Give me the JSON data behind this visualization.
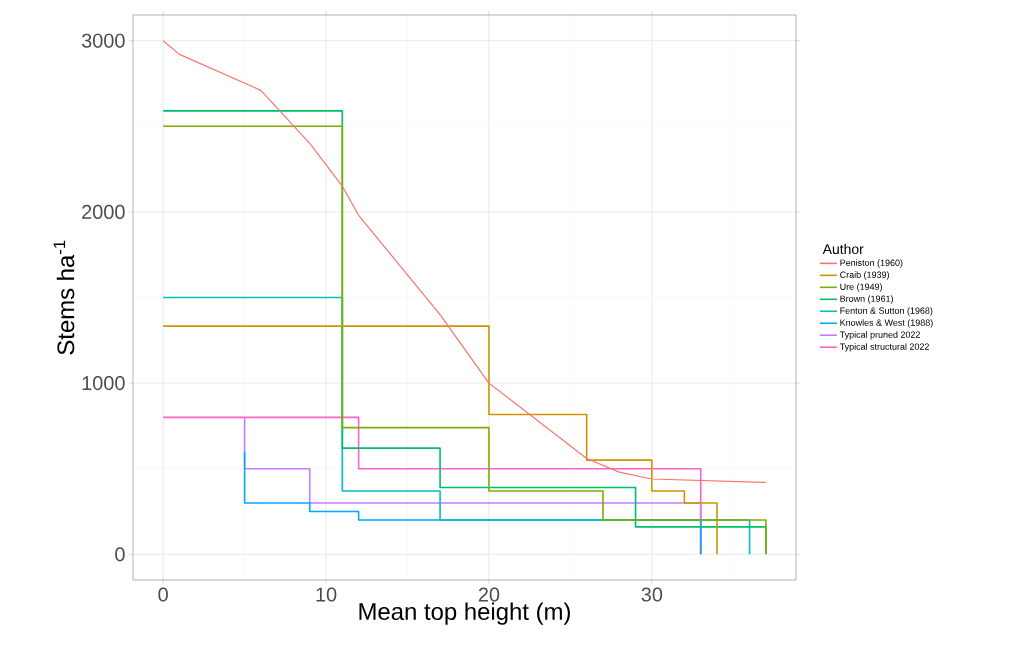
{
  "chart_data": {
    "type": "line",
    "xlabel": "Mean top height (m)",
    "ylabel": "Stems ha$^{-1}$",
    "legend_title": "Author",
    "legend": "right",
    "grid": true,
    "xlim": [
      -1.85,
      38.85
    ],
    "ylim": [
      -150,
      3150
    ],
    "xticks": [
      0,
      10,
      20,
      30
    ],
    "yticks": [
      0,
      1000,
      2000,
      3000
    ],
    "series": [
      {
        "name": "Peniston (1960)",
        "color": "#F8766D",
        "x": [
          0,
          1,
          6,
          9,
          11,
          12,
          17,
          20,
          26,
          28,
          30,
          37
        ],
        "values": [
          3000,
          2920,
          2710,
          2400,
          2150,
          1980,
          1400,
          1000,
          560,
          480,
          440,
          420
        ]
      },
      {
        "name": "Craib (1939)",
        "color": "#CD9600",
        "x": [
          0,
          20,
          20,
          26,
          26,
          30,
          30,
          32,
          32,
          34,
          34
        ],
        "values": [
          1333,
          1333,
          817,
          817,
          550,
          550,
          370,
          370,
          300,
          300,
          0
        ]
      },
      {
        "name": "Ure (1949)",
        "color": "#7CAE00",
        "x": [
          0,
          11,
          11,
          20,
          20,
          27,
          27,
          37,
          37
        ],
        "values": [
          2500,
          2500,
          740,
          740,
          370,
          370,
          200,
          200,
          0
        ]
      },
      {
        "name": "Brown (1961)",
        "color": "#00BE67",
        "x": [
          0,
          11,
          11,
          17,
          17,
          29,
          29,
          37,
          37
        ],
        "values": [
          2590,
          2590,
          620,
          620,
          390,
          390,
          160,
          160,
          0
        ]
      },
      {
        "name": "Fenton & Sutton (1968)",
        "color": "#00BFC4",
        "x": [
          0,
          11,
          11,
          17,
          17,
          36,
          36
        ],
        "values": [
          1500,
          1500,
          370,
          370,
          200,
          200,
          0
        ]
      },
      {
        "name": "Knowles & West (1988)",
        "color": "#00A9FF",
        "x": [
          5,
          5,
          9,
          9,
          12,
          12,
          33,
          33
        ],
        "values": [
          600,
          300,
          300,
          250,
          250,
          200,
          200,
          0
        ]
      },
      {
        "name": "Typical pruned 2022",
        "color": "#C77CFF",
        "x": [
          5,
          5,
          9,
          9,
          33,
          33
        ],
        "values": [
          800,
          500,
          500,
          300,
          300,
          0
        ]
      },
      {
        "name": "Typical structural 2022",
        "color": "#FF61CC",
        "x": [
          0,
          12,
          12,
          33,
          33
        ],
        "values": [
          800,
          800,
          500,
          500,
          0
        ]
      }
    ]
  }
}
